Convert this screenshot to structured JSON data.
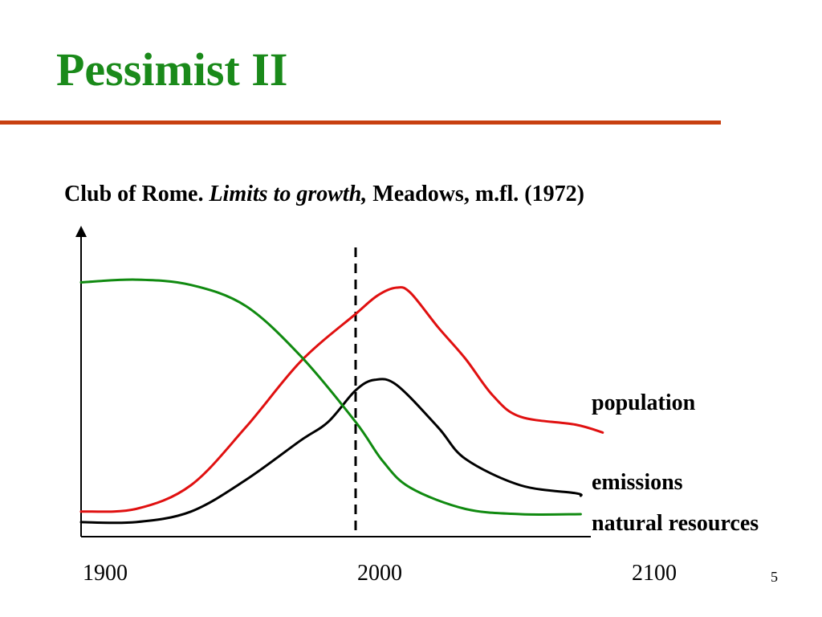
{
  "slide": {
    "title": "Pessimist II",
    "subtitle": {
      "part1": "Club of Rome. ",
      "part2_italic": "Limits to growth,",
      "part3": " Meadows, m.fl. (1972)"
    },
    "page_number": "5"
  },
  "colors": {
    "title": "#1a8a1a",
    "rule": "#c84010",
    "population": "#e01010",
    "emissions": "#000000",
    "natural_resources": "#108a10"
  },
  "chart_data": {
    "type": "line",
    "title": "",
    "xlabel": "",
    "ylabel": "",
    "x_ticks": [
      1900,
      2000,
      2100
    ],
    "x_tick_labels": [
      "1900",
      "2000",
      "2100"
    ],
    "xlim": [
      1900,
      2100
    ],
    "ylim": [
      0,
      100
    ],
    "grid": false,
    "y_axis_numbered": false,
    "reference_line": {
      "x": 2000,
      "style": "dashed"
    },
    "series": [
      {
        "name": "population",
        "color": "#e01010",
        "points": [
          [
            1900,
            8
          ],
          [
            1920,
            9
          ],
          [
            1940,
            18
          ],
          [
            1960,
            40
          ],
          [
            1980,
            65
          ],
          [
            2000,
            83
          ],
          [
            2008,
            90
          ],
          [
            2015,
            93
          ],
          [
            2020,
            91
          ],
          [
            2030,
            78
          ],
          [
            2040,
            66
          ],
          [
            2050,
            52
          ],
          [
            2060,
            44
          ],
          [
            2080,
            41
          ],
          [
            2090,
            38
          ]
        ]
      },
      {
        "name": "emissions",
        "color": "#000000",
        "points": [
          [
            1900,
            4
          ],
          [
            1920,
            4
          ],
          [
            1940,
            8
          ],
          [
            1960,
            20
          ],
          [
            1980,
            35
          ],
          [
            1990,
            42
          ],
          [
            2000,
            54
          ],
          [
            2007,
            58
          ],
          [
            2015,
            56
          ],
          [
            2030,
            40
          ],
          [
            2040,
            28
          ],
          [
            2060,
            18
          ],
          [
            2080,
            15
          ],
          [
            2082,
            14
          ]
        ]
      },
      {
        "name": "natural resources",
        "color": "#108a10",
        "points": [
          [
            1900,
            95
          ],
          [
            1920,
            96
          ],
          [
            1940,
            94
          ],
          [
            1960,
            86
          ],
          [
            1980,
            67
          ],
          [
            2000,
            42
          ],
          [
            2010,
            27
          ],
          [
            2020,
            17
          ],
          [
            2040,
            9
          ],
          [
            2060,
            7
          ],
          [
            2082,
            7
          ]
        ]
      }
    ]
  }
}
